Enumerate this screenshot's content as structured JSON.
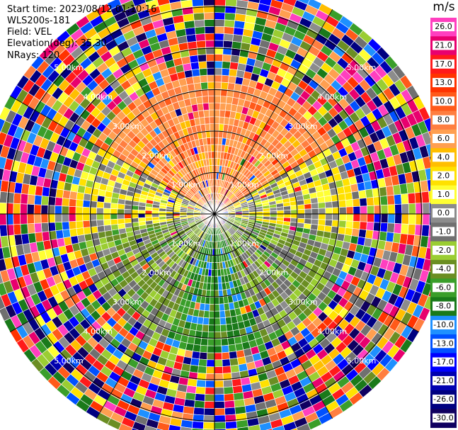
{
  "header": {
    "start_time": "Start time: 2023/08/12 01:10:16",
    "instrument": "WLS200s-181",
    "field": "Field: VEL",
    "elevation": "Elevation(deg): 35.30",
    "nrays": "NRays: 120"
  },
  "colorbar": {
    "unit": "m/s",
    "ticks": [
      "26.0",
      "21.0",
      "17.0",
      "13.0",
      "10.0",
      "8.0",
      "6.0",
      "4.0",
      "2.0",
      "1.0",
      "0.0",
      "-1.0",
      "-2.0",
      "-4.0",
      "-6.0",
      "-8.0",
      "-10.0",
      "-13.0",
      "-17.0",
      "-21.0",
      "-26.0",
      "-30.0"
    ],
    "colors": [
      "#ff3fbf",
      "#e8006e",
      "#ff1a1a",
      "#ff3300",
      "#ff5a1a",
      "#ff7e40",
      "#ff9f50",
      "#ffbe00",
      "#ffe100",
      "#ffff33",
      "#8c8c8c",
      "#707070",
      "#9acd32",
      "#6b8e23",
      "#3a9e2a",
      "#1a7a1a",
      "#1e90ff",
      "#0050ff",
      "#0000ff",
      "#0000b0",
      "#000080",
      "#100060"
    ]
  },
  "chart_data": {
    "type": "heatmap",
    "projection": "polar-ppi",
    "field": "VEL",
    "nrays": 120,
    "range_rings_km": [
      1.0,
      2.0,
      3.0,
      4.0,
      5.0
    ],
    "ring_labels": [
      "1.00km",
      "2.00km",
      "3.00km",
      "4.00km",
      "5.00km"
    ],
    "max_range_km": 5.7,
    "velocity_sectors": [
      {
        "azimuth_range_deg": [
          300,
          60
        ],
        "range_km": [
          0.3,
          3.3
        ],
        "typical_velocity_ms": 8.0
      },
      {
        "azimuth_range_deg": [
          60,
          100
        ],
        "range_km": [
          0.3,
          3.3
        ],
        "typical_velocity_ms": 1.0
      },
      {
        "azimuth_range_deg": [
          260,
          300
        ],
        "range_km": [
          0.3,
          3.3
        ],
        "typical_velocity_ms": 1.0
      },
      {
        "azimuth_range_deg": [
          100,
          160
        ],
        "range_km": [
          0.3,
          3.3
        ],
        "typical_velocity_ms": -2.0
      },
      {
        "azimuth_range_deg": [
          160,
          200
        ],
        "range_km": [
          0.3,
          3.3
        ],
        "typical_velocity_ms": -6.0
      },
      {
        "azimuth_range_deg": [
          200,
          260
        ],
        "range_km": [
          0.3,
          3.3
        ],
        "typical_velocity_ms": -2.0
      }
    ],
    "noise_beyond_km": 3.3
  }
}
